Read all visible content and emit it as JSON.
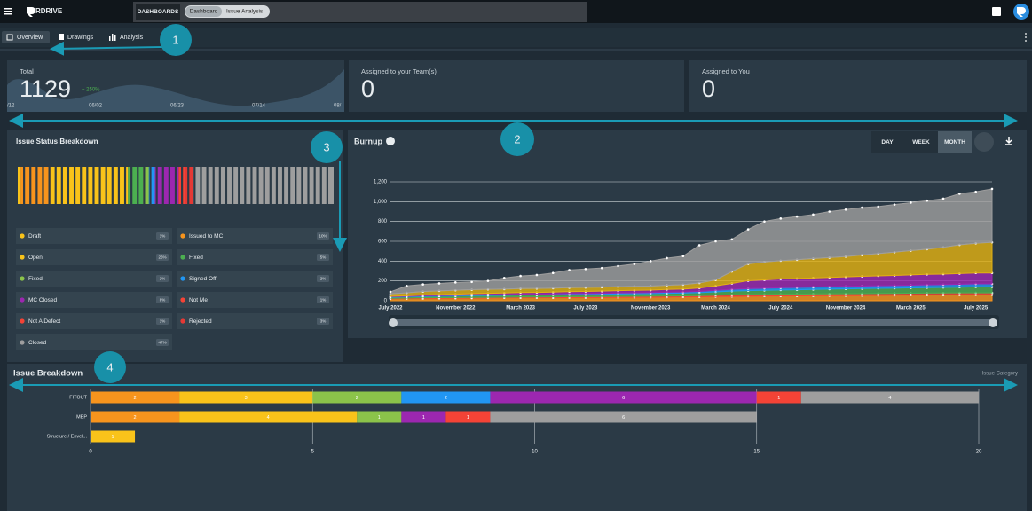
{
  "header": {
    "logo": "RDRIVE",
    "section": "DASHBOARDS",
    "breadcrumbs": [
      "Dashboard",
      "Issue Analysis"
    ]
  },
  "tabs": [
    "Overview",
    "Drawings",
    "Analysis"
  ],
  "callouts": [
    "1",
    "2",
    "3",
    "4"
  ],
  "cards": [
    {
      "label": "Total",
      "value": "1129",
      "change": "+ 250%",
      "dates": [
        "/12",
        "06/02",
        "06/23",
        "07/14",
        "08/"
      ]
    },
    {
      "label": "Assigned to your Team(s)",
      "value": "0"
    },
    {
      "label": "Assigned to You",
      "value": "0"
    }
  ],
  "status_breakdown": {
    "title": "Issue Status Breakdown",
    "items": [
      {
        "name": "Draft",
        "color": "#f9c31a",
        "value": 1,
        "value_label": "1%"
      },
      {
        "name": "Issued to MC",
        "color": "#f7941d",
        "value": 10,
        "value_label": "10%"
      },
      {
        "name": "Open",
        "color": "#f9c31a",
        "value": 26,
        "value_label": "26%"
      },
      {
        "name": "Fixed",
        "color": "#4caf50",
        "value": 5,
        "value_label": "5%"
      },
      {
        "name": "Fixed",
        "color": "#8bc34a",
        "value": 2,
        "value_label": "2%"
      },
      {
        "name": "Signed Off",
        "color": "#2196f3",
        "value": 2,
        "value_label": "2%"
      },
      {
        "name": "MC Closed",
        "color": "#9c27b0",
        "value": 8,
        "value_label": "8%"
      },
      {
        "name": "Not Me",
        "color": "#f44336",
        "value": 1,
        "value_label": "1%"
      },
      {
        "name": "Not A Defect",
        "color": "#f44336",
        "value": 1,
        "value_label": "1%"
      },
      {
        "name": "Rejected",
        "color": "#e53935",
        "value": 3,
        "value_label": "3%"
      },
      {
        "name": "Closed",
        "color": "#9e9e9e",
        "value": 47,
        "value_label": "47%"
      }
    ]
  },
  "burnup": {
    "type": "area",
    "stacked": true,
    "title": "Burnup",
    "ranges": [
      "DAY",
      "WEEK",
      "MONTH"
    ],
    "active_range": 2,
    "categories": [
      "July 2022",
      null,
      null,
      null,
      "November 2022",
      null,
      null,
      null,
      "March 2023",
      null,
      null,
      null,
      "July 2023",
      null,
      null,
      null,
      "November 2023",
      null,
      null,
      null,
      "March 2024",
      null,
      null,
      null,
      "July 2024",
      null,
      null,
      null,
      "November 2024",
      null,
      null,
      null,
      "March 2025",
      null,
      null,
      null,
      "July 2025",
      null
    ],
    "series": [
      {
        "color": "#f7941d",
        "values": [
          20,
          22,
          24,
          25,
          26,
          27,
          28,
          29,
          30,
          30,
          31,
          32,
          32,
          33,
          34,
          35,
          36,
          37,
          38,
          40,
          42,
          44,
          46,
          47,
          48,
          49,
          50,
          51,
          52,
          53,
          54,
          55,
          56,
          57,
          58,
          59,
          60,
          60
        ]
      },
      {
        "color": "#f44336",
        "values": [
          5,
          5,
          6,
          6,
          6,
          7,
          7,
          7,
          8,
          8,
          8,
          9,
          9,
          9,
          10,
          10,
          10,
          11,
          11,
          12,
          14,
          15,
          16,
          16,
          17,
          17,
          18,
          18,
          18,
          19,
          19,
          19,
          20,
          20,
          20,
          20,
          20,
          20
        ]
      },
      {
        "color": "#4caf50",
        "values": [
          10,
          12,
          14,
          15,
          16,
          17,
          18,
          19,
          20,
          20,
          21,
          22,
          22,
          23,
          24,
          25,
          26,
          27,
          28,
          30,
          34,
          38,
          40,
          42,
          44,
          45,
          46,
          48,
          50,
          51,
          52,
          53,
          54,
          55,
          56,
          58,
          60,
          60
        ]
      },
      {
        "color": "#2196f3",
        "values": [
          5,
          5,
          6,
          6,
          6,
          7,
          7,
          7,
          8,
          8,
          8,
          9,
          9,
          9,
          10,
          10,
          10,
          11,
          11,
          12,
          15,
          18,
          20,
          21,
          22,
          23,
          24,
          24,
          25,
          25,
          26,
          26,
          27,
          28,
          28,
          29,
          30,
          30
        ]
      },
      {
        "color": "#9c27b0",
        "values": [
          5,
          6,
          8,
          10,
          12,
          14,
          15,
          16,
          17,
          18,
          19,
          20,
          22,
          23,
          24,
          25,
          26,
          28,
          30,
          35,
          45,
          60,
          80,
          85,
          88,
          90,
          92,
          94,
          96,
          98,
          100,
          102,
          104,
          106,
          107,
          108,
          110,
          110
        ]
      },
      {
        "color": "#e0b012",
        "values": [
          25,
          30,
          35,
          38,
          40,
          40,
          40,
          40,
          40,
          40,
          40,
          40,
          40,
          40,
          40,
          40,
          40,
          42,
          44,
          50,
          60,
          120,
          170,
          180,
          185,
          190,
          195,
          200,
          205,
          215,
          225,
          235,
          245,
          255,
          270,
          290,
          300,
          310
        ]
      },
      {
        "color": "#9e9e9e",
        "values": [
          20,
          70,
          72,
          75,
          79,
          78,
          85,
          112,
          127,
          136,
          153,
          178,
          186,
          193,
          208,
          225,
          252,
          274,
          288,
          381,
          390,
          325,
          348,
          409,
          426,
          436,
          445,
          465,
          474,
          479,
          474,
          480,
          484,
          489,
          491,
          516,
          520,
          539
        ]
      }
    ],
    "ylim": [
      0,
      1200
    ],
    "yticks": [
      0,
      200,
      400,
      600,
      800,
      {
        "value": 1000,
        "label": "1,000"
      },
      {
        "value": 1200,
        "label": "1,200"
      }
    ],
    "grid": true
  },
  "issue_breakdown": {
    "type": "bar",
    "orientation": "horizontal",
    "stacked": true,
    "title": "Issue Breakdown",
    "axis_label": "Issue Category",
    "categories": [
      "FITOUT",
      "MEP",
      "Structure / Envel..."
    ],
    "series": [
      {
        "color": "#f7941d",
        "values": [
          2,
          2,
          null
        ]
      },
      {
        "color": "#f9c31a",
        "values": [
          3,
          4,
          1
        ]
      },
      {
        "color": "#8bc34a",
        "values": [
          2,
          1,
          null
        ]
      },
      {
        "color": "#2196f3",
        "values": [
          2,
          null,
          null
        ]
      },
      {
        "color": "#9c27b0",
        "values": [
          6,
          1,
          null
        ]
      },
      {
        "color": "#f44336",
        "values": [
          1,
          1,
          null
        ]
      },
      {
        "color": "#9e9e9e",
        "values": [
          4,
          6,
          null
        ]
      }
    ],
    "xlim": [
      0,
      20
    ],
    "xticks": [
      0,
      5,
      10,
      15,
      20
    ],
    "grid": true
  }
}
